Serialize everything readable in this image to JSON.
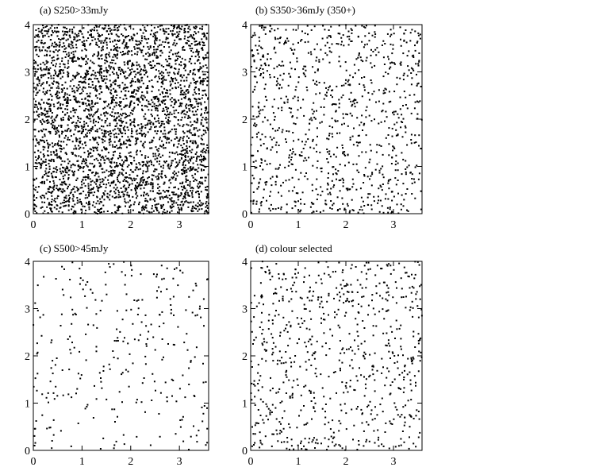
{
  "chart_data": [
    {
      "type": "scatter",
      "title": "(a) S250>33mJy",
      "xlim": [
        0,
        3.6
      ],
      "ylim": [
        0,
        4
      ],
      "xticks": [
        "0",
        "1",
        "2",
        "3"
      ],
      "yticks": [
        "0",
        "1",
        "2",
        "3",
        "4"
      ],
      "point_count": 3500,
      "seed": 11
    },
    {
      "type": "scatter",
      "title": "(b) S350>36mJy (350+)",
      "xlim": [
        0,
        3.6
      ],
      "ylim": [
        0,
        4
      ],
      "xticks": [
        "0",
        "1",
        "2",
        "3"
      ],
      "yticks": [
        "0",
        "1",
        "2",
        "3",
        "4"
      ],
      "point_count": 1000,
      "seed": 23
    },
    {
      "type": "scatter",
      "title": "(c) S500>45mJy",
      "xlim": [
        0,
        3.6
      ],
      "ylim": [
        0,
        4
      ],
      "xticks": [
        "0",
        "1",
        "2",
        "3"
      ],
      "yticks": [
        "0",
        "1",
        "2",
        "3",
        "4"
      ],
      "point_count": 300,
      "seed": 37
    },
    {
      "type": "scatter",
      "title": "(d) colour selected",
      "xlim": [
        0,
        3.6
      ],
      "ylim": [
        0,
        4
      ],
      "xticks": [
        "0",
        "1",
        "2",
        "3"
      ],
      "yticks": [
        "0",
        "1",
        "2",
        "3",
        "4"
      ],
      "point_count": 750,
      "seed": 53
    }
  ]
}
